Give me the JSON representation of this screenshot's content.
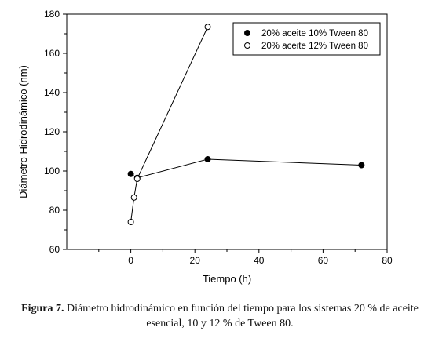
{
  "chart_data": {
    "type": "line",
    "title": "",
    "xlabel": "Tiempo (h)",
    "ylabel": "Diámetro Hidrodinámico (nm)",
    "xlim": [
      -20,
      80
    ],
    "ylim": [
      60,
      180
    ],
    "x_ticks": [
      "0",
      "20",
      "40",
      "60",
      "80"
    ],
    "y_ticks": [
      "60",
      "80",
      "100",
      "120",
      "140",
      "160",
      "180"
    ],
    "grid": false,
    "legend_position": "top-right",
    "series": [
      {
        "name": "20% aceite 10% Tween 80",
        "marker": "filled-circle",
        "points": [
          {
            "x": 0,
            "y": 98.5
          },
          {
            "x": 2,
            "y": 96.5
          },
          {
            "x": 24,
            "y": 106
          },
          {
            "x": 72,
            "y": 103
          }
        ]
      },
      {
        "name": "20% aceite 12% Tween 80",
        "marker": "open-circle",
        "points": [
          {
            "x": 0,
            "y": 74
          },
          {
            "x": 1,
            "y": 86.5
          },
          {
            "x": 2,
            "y": 96
          },
          {
            "x": 24,
            "y": 173.5
          }
        ]
      }
    ]
  },
  "caption": {
    "label": "Figura 7.",
    "text": " Diámetro hidrodinámico en función del tiempo para los sistemas 20 % de aceite esencial, 10 y 12 % de Tween 80."
  },
  "colors": {
    "line": "#000000",
    "open_marker_fill": "#ffffff"
  }
}
